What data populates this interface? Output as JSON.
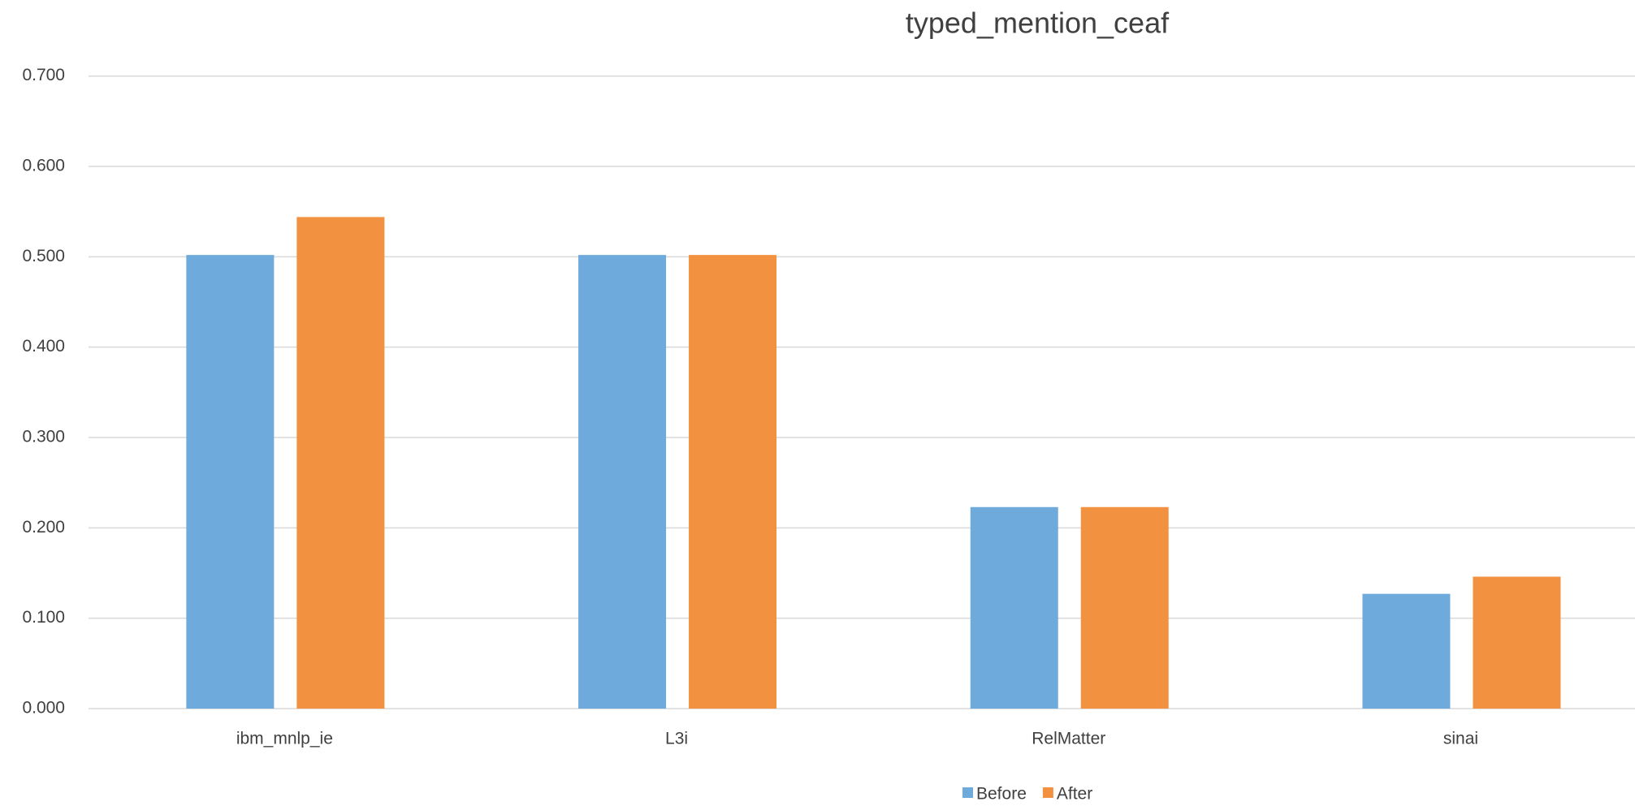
{
  "chart_data": {
    "type": "bar",
    "title": "typed_mention_ceaf",
    "categories": [
      "ibm_mnlp_ie",
      "L3i",
      "RelMatter",
      "sinai"
    ],
    "series": [
      {
        "name": "Before",
        "color": "#6eaadb",
        "values": [
          0.502,
          0.502,
          0.223,
          0.127
        ]
      },
      {
        "name": "After",
        "color": "#f29240",
        "values": [
          0.544,
          0.502,
          0.223,
          0.146
        ]
      }
    ],
    "ylim": [
      0,
      0.7
    ],
    "yticks": [
      {
        "value": 0,
        "label": "0.000"
      },
      {
        "value": 0.1,
        "label": "0.100"
      },
      {
        "value": 0.2,
        "label": "0.200"
      },
      {
        "value": 0.3,
        "label": "0.300"
      },
      {
        "value": 0.4,
        "label": "0.400"
      },
      {
        "value": 0.5,
        "label": "0.500"
      },
      {
        "value": 0.6,
        "label": "0.600"
      },
      {
        "value": 0.7,
        "label": "0.700"
      }
    ],
    "grid": true,
    "legend": "bottom"
  }
}
